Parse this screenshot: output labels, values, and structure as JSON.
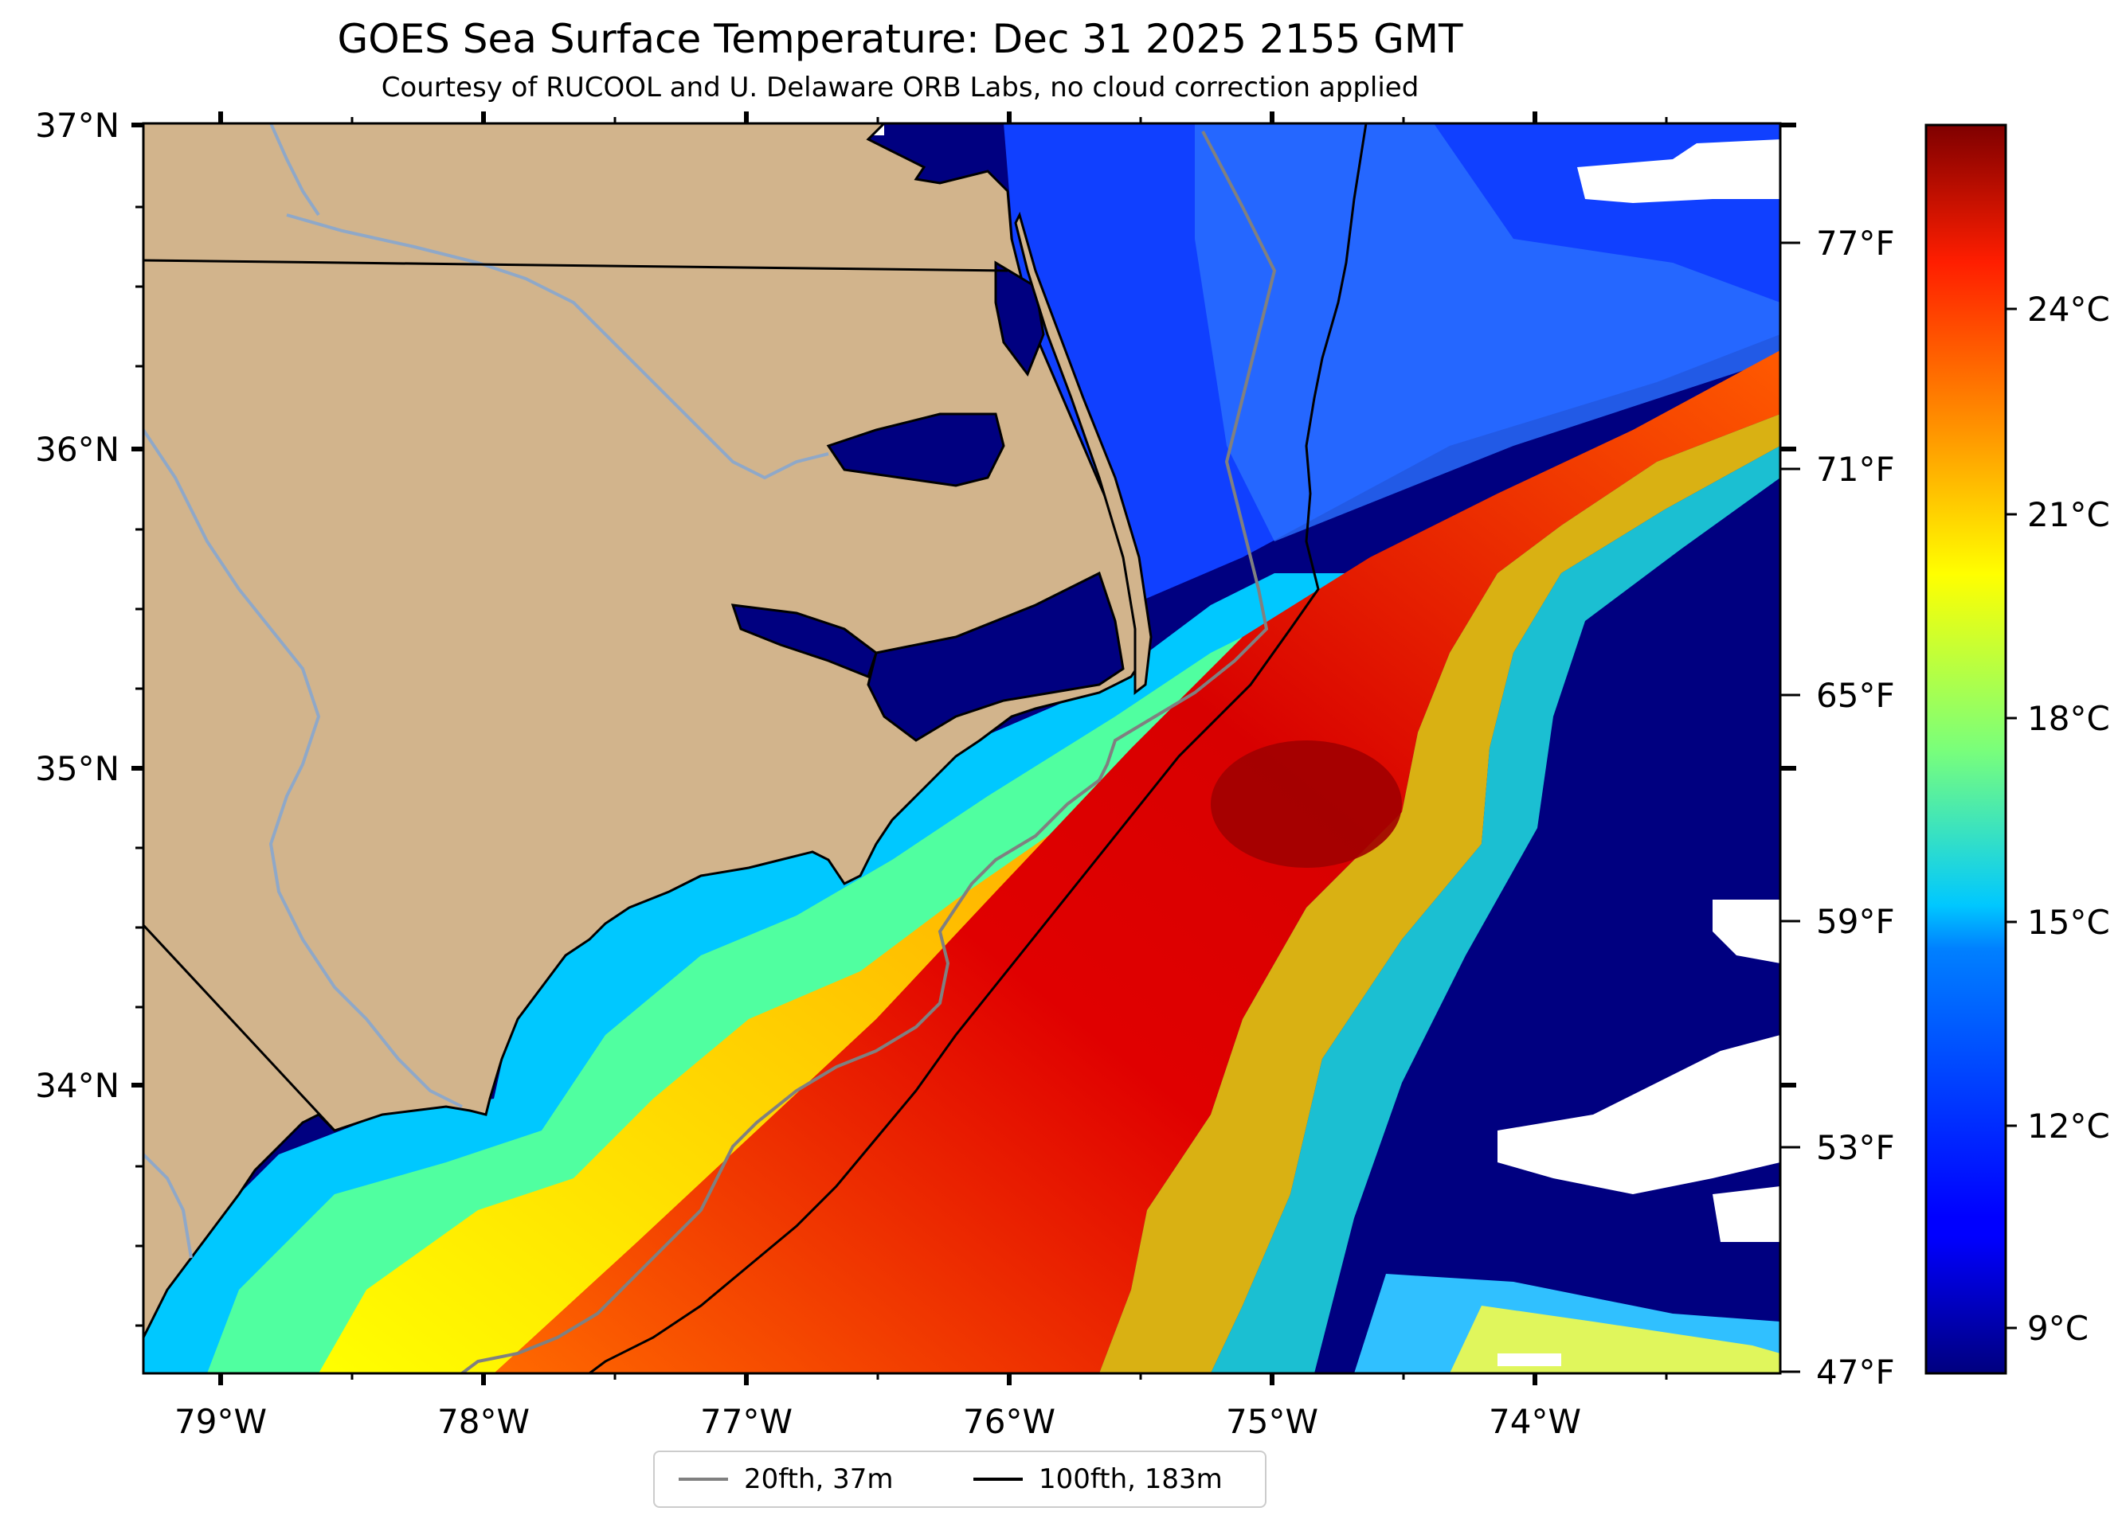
{
  "title": "GOES Sea Surface Temperature: Dec 31 2025 2155 GMT",
  "subtitle": "Courtesy of RUCOOL and U. Delaware ORB Labs, no cloud correction applied",
  "map": {
    "lat_ticks": [
      {
        "label": "37°N",
        "value": 37
      },
      {
        "label": "36°N",
        "value": 36
      },
      {
        "label": "35°N",
        "value": 35
      },
      {
        "label": "34°N",
        "value": 34
      }
    ],
    "lon_ticks": [
      {
        "label": "79°W",
        "value": -79
      },
      {
        "label": "78°W",
        "value": -78
      },
      {
        "label": "77°W",
        "value": -77
      },
      {
        "label": "76°W",
        "value": -76
      },
      {
        "label": "75°W",
        "value": -75
      },
      {
        "label": "74°W",
        "value": -74
      }
    ],
    "lon_range": [
      -79.3,
      -73.1
    ],
    "lat_range": [
      33.15,
      37.0
    ],
    "fahrenheit_ticks": [
      {
        "label": "77°F",
        "value": 77
      },
      {
        "label": "71°F",
        "value": 71
      },
      {
        "label": "65°F",
        "value": 65
      },
      {
        "label": "59°F",
        "value": 59
      },
      {
        "label": "53°F",
        "value": 53
      },
      {
        "label": "47°F",
        "value": 47
      }
    ],
    "land_color": "#d2b48c",
    "cloud_color": "#ffffff"
  },
  "colorbar": {
    "colormap": "jet",
    "range_c": [
      8.3,
      25.0
    ],
    "ticks": [
      {
        "label": "24°C",
        "value": 24
      },
      {
        "label": "21°C",
        "value": 21
      },
      {
        "label": "18°C",
        "value": 18
      },
      {
        "label": "15°C",
        "value": 15
      },
      {
        "label": "12°C",
        "value": 12
      },
      {
        "label": "9°C",
        "value": 9
      }
    ]
  },
  "legend": {
    "items": [
      {
        "label": "20fth, 37m",
        "color": "#808080"
      },
      {
        "label": "100fth, 183m",
        "color": "#000000"
      }
    ]
  }
}
